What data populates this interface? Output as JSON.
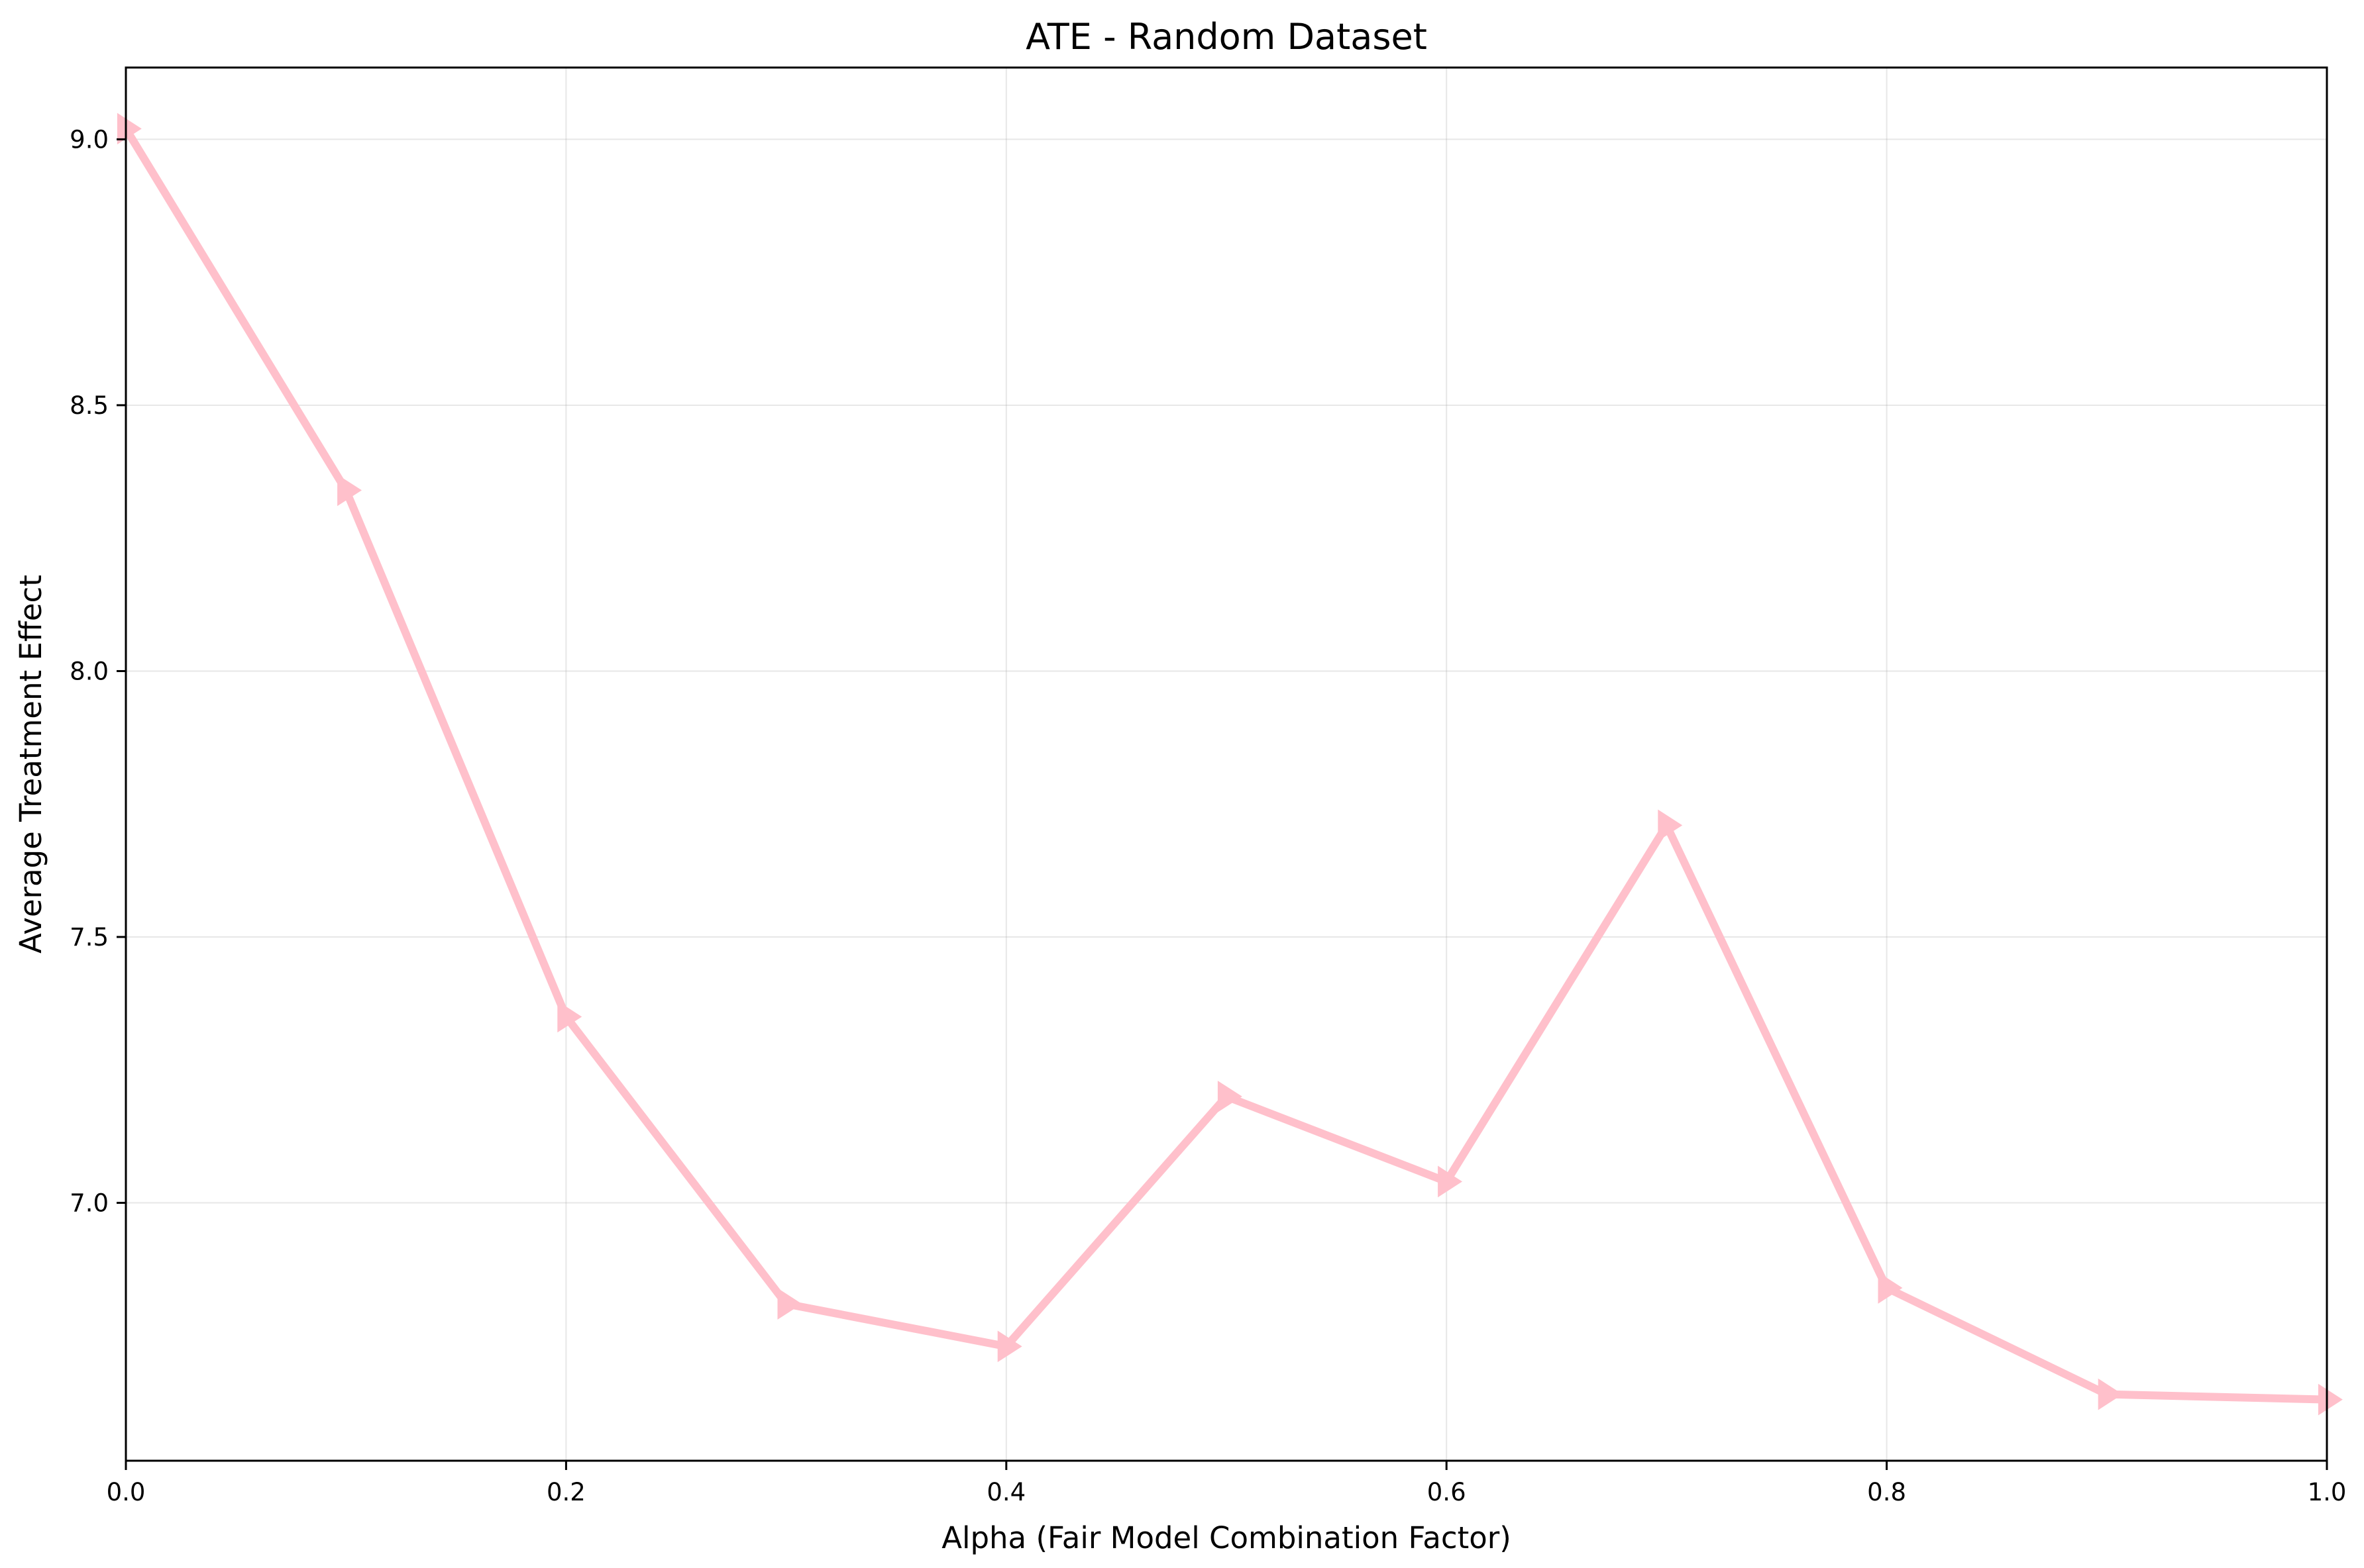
{
  "chart_data": {
    "type": "line",
    "title": "ATE - Random Dataset",
    "xlabel": "Alpha (Fair Model Combination Factor)",
    "ylabel": "Average Treatment Effect",
    "xlim": [
      0.0,
      1.0
    ],
    "ylim": [
      6.515,
      9.135
    ],
    "x_ticks": [
      "0.0",
      "0.2",
      "0.4",
      "0.6",
      "0.8",
      "1.0"
    ],
    "y_ticks": [
      "7.0",
      "7.5",
      "8.0",
      "8.5",
      "9.0"
    ],
    "grid": true,
    "series": [
      {
        "x": [
          0.0,
          0.1,
          0.2,
          0.3,
          0.4,
          0.5,
          0.6,
          0.7,
          0.8,
          0.9,
          1.0
        ],
        "values": [
          9.02,
          8.34,
          7.35,
          6.81,
          6.73,
          7.2,
          7.04,
          7.71,
          6.84,
          6.64,
          6.63
        ],
        "color": "#ffc0cb",
        "marker": "triangle-right"
      }
    ]
  }
}
